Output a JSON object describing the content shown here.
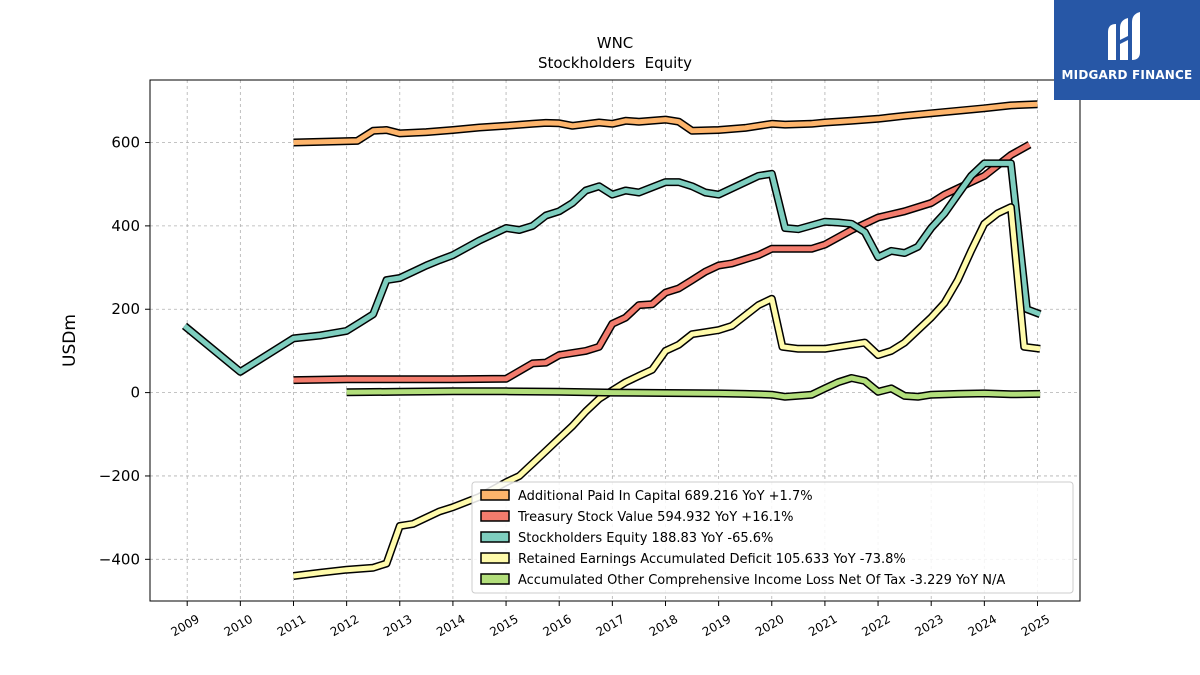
{
  "chart_data": {
    "type": "line",
    "title": "WNC",
    "subtitle": "Stockholders  Equity",
    "ylabel": "USDm",
    "xlabel": "",
    "xlim": [
      2008.3,
      2025.8
    ],
    "ylim": [
      -500,
      750
    ],
    "yticks": [
      -400,
      -200,
      0,
      200,
      400,
      600
    ],
    "xticks": [
      2009,
      2010,
      2011,
      2012,
      2013,
      2014,
      2015,
      2016,
      2017,
      2018,
      2019,
      2020,
      2021,
      2022,
      2023,
      2024,
      2025
    ],
    "grid": true,
    "legend_position": "lower-right",
    "series": [
      {
        "name": "Additional Paid In Capital",
        "legend": "Additional Paid In Capital  689.216 YoY +1.7%",
        "color": "#fdb46b",
        "x": [
          2011.0,
          2012.2,
          2012.5,
          2012.75,
          2013.0,
          2013.5,
          2014.0,
          2014.5,
          2015.0,
          2015.5,
          2015.75,
          2016.0,
          2016.25,
          2016.75,
          2017.0,
          2017.25,
          2017.5,
          2018.0,
          2018.25,
          2018.5,
          2019.0,
          2019.5,
          2020.0,
          2020.25,
          2020.75,
          2021.0,
          2021.5,
          2022.0,
          2022.5,
          2023.0,
          2023.5,
          2024.0,
          2024.5,
          2025.0
        ],
        "y": [
          600,
          604,
          628,
          630,
          622,
          625,
          630,
          636,
          640,
          645,
          647,
          646,
          640,
          648,
          645,
          652,
          650,
          655,
          650,
          628,
          630,
          635,
          645,
          643,
          645,
          648,
          652,
          657,
          664,
          670,
          676,
          682,
          689,
          692
        ]
      },
      {
        "name": "Treasury Stock Value",
        "legend": "Treasury Stock Value  594.932 YoY +16.1%",
        "color": "#f37c6d",
        "x": [
          2011.0,
          2012.0,
          2013.0,
          2014.0,
          2015.0,
          2015.5,
          2015.75,
          2016.0,
          2016.5,
          2016.75,
          2017.0,
          2017.25,
          2017.5,
          2017.75,
          2018.0,
          2018.25,
          2018.5,
          2018.75,
          2019.0,
          2019.25,
          2019.5,
          2019.75,
          2020.0,
          2020.25,
          2020.75,
          2021.0,
          2021.5,
          2022.0,
          2022.5,
          2023.0,
          2023.25,
          2023.5,
          2024.0,
          2024.5,
          2024.85
        ],
        "y": [
          30,
          32,
          32,
          32,
          33,
          70,
          72,
          90,
          100,
          110,
          165,
          180,
          210,
          212,
          240,
          250,
          270,
          290,
          305,
          310,
          320,
          330,
          345,
          345,
          345,
          355,
          390,
          420,
          435,
          455,
          475,
          490,
          520,
          570,
          595
        ]
      },
      {
        "name": "Stockholders Equity",
        "legend": "Stockholders Equity  188.83 YoY -65.6%",
        "color": "#7ecebf",
        "x": [
          2008.95,
          2010.0,
          2011.0,
          2011.5,
          2012.0,
          2012.25,
          2012.5,
          2012.75,
          2013.0,
          2013.25,
          2013.5,
          2013.75,
          2014.0,
          2014.5,
          2015.0,
          2015.25,
          2015.5,
          2015.75,
          2016.0,
          2016.25,
          2016.5,
          2016.75,
          2017.0,
          2017.25,
          2017.5,
          2018.0,
          2018.25,
          2018.5,
          2018.75,
          2019.0,
          2019.25,
          2019.5,
          2019.75,
          2020.0,
          2020.25,
          2020.5,
          2021.0,
          2021.25,
          2021.5,
          2021.75,
          2022.0,
          2022.25,
          2022.5,
          2022.75,
          2023.0,
          2023.25,
          2023.5,
          2023.75,
          2024.0,
          2024.25,
          2024.5,
          2024.8,
          2025.05
        ],
        "y": [
          160,
          50,
          130,
          137,
          148,
          168,
          188,
          270,
          275,
          290,
          305,
          318,
          330,
          365,
          395,
          390,
          400,
          425,
          435,
          455,
          485,
          495,
          475,
          485,
          480,
          505,
          505,
          495,
          480,
          475,
          490,
          505,
          520,
          525,
          395,
          392,
          410,
          408,
          405,
          385,
          325,
          340,
          335,
          350,
          395,
          430,
          475,
          520,
          550,
          550,
          550,
          200,
          188
        ]
      },
      {
        "name": "Retained Earnings Accumulated Deficit",
        "legend": "Retained Earnings Accumulated Deficit  105.633 YoY -73.8%",
        "color": "#fffbab",
        "x": [
          2011.0,
          2011.5,
          2012.0,
          2012.5,
          2012.75,
          2013.0,
          2013.25,
          2013.5,
          2013.75,
          2014.0,
          2014.5,
          2015.0,
          2015.25,
          2015.5,
          2015.75,
          2016.0,
          2016.25,
          2016.5,
          2016.75,
          2017.0,
          2017.25,
          2017.5,
          2017.75,
          2018.0,
          2018.25,
          2018.5,
          2018.75,
          2019.0,
          2019.25,
          2019.5,
          2019.75,
          2020.0,
          2020.2,
          2020.5,
          2021.0,
          2021.5,
          2021.75,
          2022.0,
          2022.25,
          2022.5,
          2022.75,
          2023.0,
          2023.25,
          2023.5,
          2023.75,
          2024.0,
          2024.25,
          2024.5,
          2024.75,
          2025.05
        ],
        "y": [
          -440,
          -432,
          -425,
          -420,
          -410,
          -320,
          -315,
          -300,
          -285,
          -275,
          -250,
          -215,
          -200,
          -170,
          -140,
          -110,
          -80,
          -45,
          -15,
          5,
          25,
          40,
          55,
          100,
          115,
          140,
          145,
          150,
          160,
          185,
          210,
          225,
          110,
          105,
          105,
          115,
          120,
          90,
          100,
          120,
          150,
          180,
          215,
          270,
          340,
          405,
          430,
          445,
          110,
          105
        ]
      },
      {
        "name": "Accumulated Other Comprehensive Income Loss Net Of Tax",
        "legend": "Accumulated Other Comprehensive Income Loss Net Of Tax  -3.229 YoY N/A",
        "color": "#b2de7b",
        "x": [
          2012.0,
          2013.0,
          2014.0,
          2015.0,
          2016.0,
          2017.0,
          2018.0,
          2019.0,
          2019.5,
          2020.0,
          2020.25,
          2020.75,
          2021.0,
          2021.25,
          2021.5,
          2021.75,
          2022.0,
          2022.25,
          2022.5,
          2022.75,
          2023.0,
          2023.5,
          2024.0,
          2024.5,
          2025.05
        ],
        "y": [
          1,
          2,
          3,
          3,
          2,
          0,
          -1,
          -2,
          -3,
          -5,
          -10,
          -5,
          10,
          25,
          35,
          28,
          2,
          10,
          -8,
          -10,
          -5,
          -3,
          -2,
          -4,
          -3
        ]
      }
    ]
  },
  "logo": {
    "text": "MIDGARD FINANCE"
  }
}
